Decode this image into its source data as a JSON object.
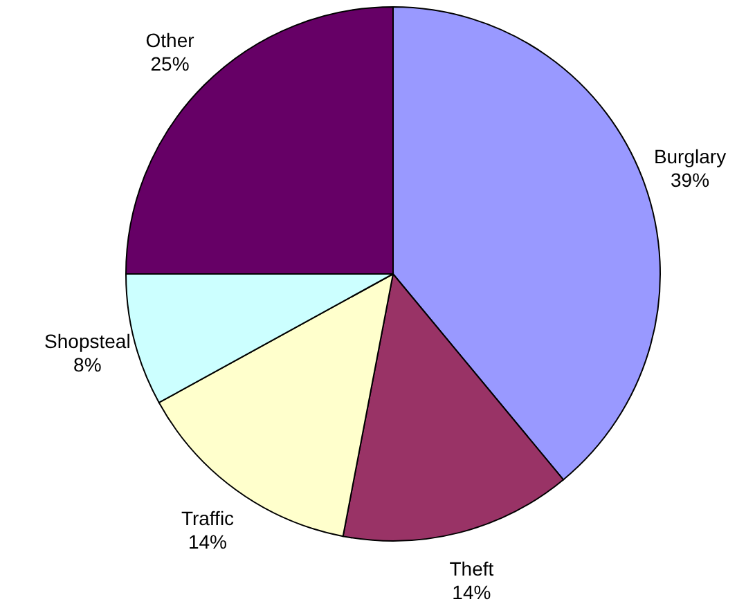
{
  "chart_data": {
    "type": "pie",
    "categories": [
      "Burglary",
      "Theft",
      "Traffic",
      "Shopsteal",
      "Other"
    ],
    "values": [
      39,
      14,
      14,
      8,
      25
    ],
    "value_labels": [
      "39%",
      "14%",
      "14%",
      "8%",
      "25%"
    ],
    "colors": [
      "#9999ff",
      "#993366",
      "#ffffcc",
      "#ccffff",
      "#660066"
    ]
  }
}
